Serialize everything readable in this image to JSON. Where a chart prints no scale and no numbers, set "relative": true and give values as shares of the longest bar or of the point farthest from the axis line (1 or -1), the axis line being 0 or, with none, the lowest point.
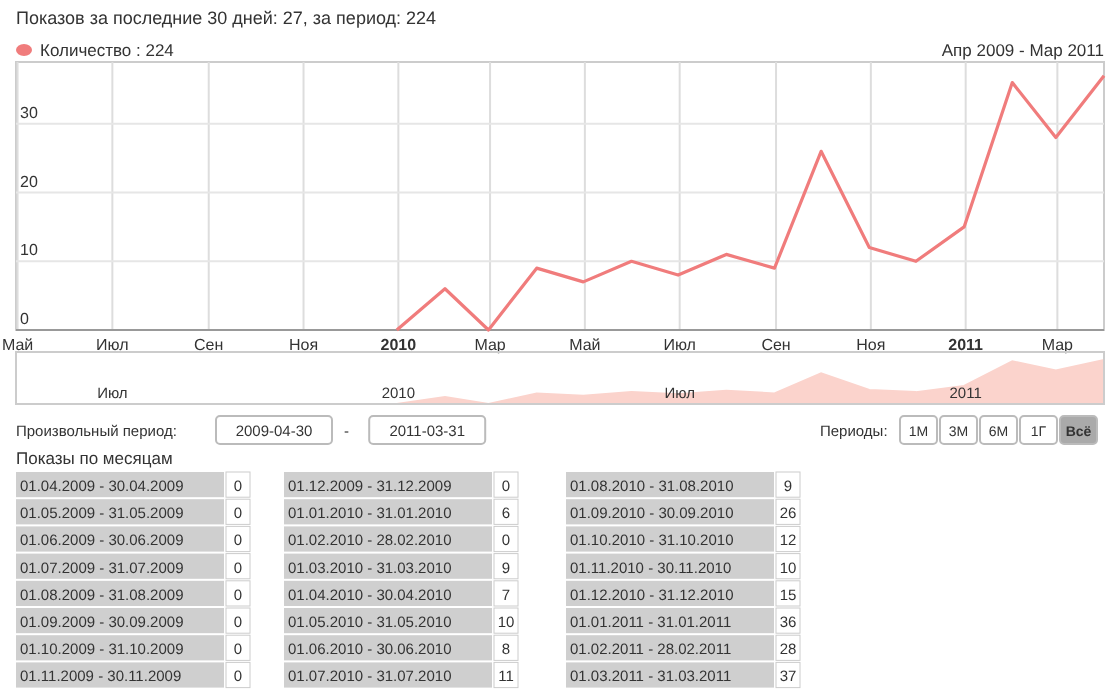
{
  "chart_data": [
    {
      "type": "line",
      "title": "Показов за последние 30 дней: 27, за период: 224",
      "subtitle": "Апр 2009 - Мар 2011",
      "x": [
        "2009-12-31",
        "2010-01-31",
        "2010-02-28",
        "2010-03-31",
        "2010-04-30",
        "2010-05-31",
        "2010-06-30",
        "2010-07-31",
        "2010-08-31",
        "2010-09-30",
        "2010-10-31",
        "2010-11-30",
        "2010-12-31",
        "2011-01-31",
        "2011-02-28",
        "2011-03-31"
      ],
      "series": [
        {
          "name": "Количество : 224",
          "color": "#f07c7c",
          "values": [
            0,
            6,
            0,
            9,
            7,
            10,
            8,
            11,
            9,
            26,
            12,
            10,
            15,
            36,
            28,
            37
          ]
        }
      ],
      "xlim": [
        "2009-04-30",
        "2011-03-31"
      ],
      "xticks": [
        {
          "value": "2009-05-01",
          "label": "Май"
        },
        {
          "value": "2009-07-01",
          "label": "Июл"
        },
        {
          "value": "2009-09-01",
          "label": "Сен"
        },
        {
          "value": "2009-11-01",
          "label": "Ноя"
        },
        {
          "value": "2010-01-01",
          "label": "2010"
        },
        {
          "value": "2010-03-01",
          "label": "Мар"
        },
        {
          "value": "2010-05-01",
          "label": "Май"
        },
        {
          "value": "2010-07-01",
          "label": "Июл"
        },
        {
          "value": "2010-09-01",
          "label": "Сен"
        },
        {
          "value": "2010-11-01",
          "label": "Ноя"
        },
        {
          "value": "2011-01-01",
          "label": "2011"
        },
        {
          "value": "2011-03-01",
          "label": "Мар"
        }
      ],
      "ylim": [
        0,
        39
      ],
      "yticks": [
        0,
        10,
        20,
        30
      ],
      "grid": true,
      "legend": "top left"
    },
    {
      "type": "area",
      "relative": true,
      "color": "#fbd3cc",
      "x": [
        "2009-04-30",
        "2009-05-31",
        "2009-06-30",
        "2009-07-31",
        "2009-08-31",
        "2009-09-30",
        "2009-10-31",
        "2009-11-30",
        "2009-12-31",
        "2010-01-31",
        "2010-02-28",
        "2010-03-31",
        "2010-04-30",
        "2010-05-31",
        "2010-06-30",
        "2010-07-31",
        "2010-08-31",
        "2010-09-30",
        "2010-10-31",
        "2010-11-30",
        "2010-12-31",
        "2011-01-31",
        "2011-02-28",
        "2011-03-31"
      ],
      "values": [
        0,
        0,
        0,
        0,
        0,
        0,
        0,
        0,
        0,
        0.16,
        0,
        0.24,
        0.19,
        0.27,
        0.22,
        0.3,
        0.24,
        0.7,
        0.32,
        0.27,
        0.41,
        0.97,
        0.76,
        1
      ],
      "xlim": [
        "2009-04-30",
        "2011-03-31"
      ],
      "xticks": [
        {
          "value": "2009-07-01",
          "label": "Июл"
        },
        {
          "value": "2010-01-01",
          "label": "2010"
        },
        {
          "value": "2010-07-01",
          "label": "Июл"
        },
        {
          "value": "2011-01-01",
          "label": "2011"
        }
      ],
      "annotations": [
        "Произвольный период:",
        "2009-04-30",
        "-",
        "2011-03-31",
        "Периоды:",
        "1М",
        "3М",
        "6М",
        "1Г",
        "Всё"
      ]
    },
    {
      "type": "other",
      "title": "Показы по месяцам",
      "data_labels": true,
      "categories": [
        "01.04.2009 - 30.04.2009",
        "01.05.2009 - 31.05.2009",
        "01.06.2009 - 30.06.2009",
        "01.07.2009 - 31.07.2009",
        "01.08.2009 - 31.08.2009",
        "01.09.2009 - 30.09.2009",
        "01.10.2009 - 31.10.2009",
        "01.11.2009 - 30.11.2009",
        "01.12.2009 - 31.12.2009",
        "01.01.2010 - 31.01.2010",
        "01.02.2010 - 28.02.2010",
        "01.03.2010 - 31.03.2010",
        "01.04.2010 - 30.04.2010",
        "01.05.2010 - 31.05.2010",
        "01.06.2010 - 30.06.2010",
        "01.07.2010 - 31.07.2010",
        "01.08.2010 - 31.08.2010",
        "01.09.2010 - 30.09.2010",
        "01.10.2010 - 31.10.2010",
        "01.11.2010 - 30.11.2010",
        "01.12.2010 - 31.12.2010",
        "01.01.2011 - 31.01.2011",
        "01.02.2011 - 28.02.2011",
        "01.03.2011 - 31.03.2011"
      ],
      "values": [
        0,
        0,
        0,
        0,
        0,
        0,
        0,
        0,
        0,
        6,
        0,
        9,
        7,
        10,
        8,
        11,
        9,
        26,
        12,
        10,
        15,
        36,
        28,
        37
      ]
    }
  ]
}
